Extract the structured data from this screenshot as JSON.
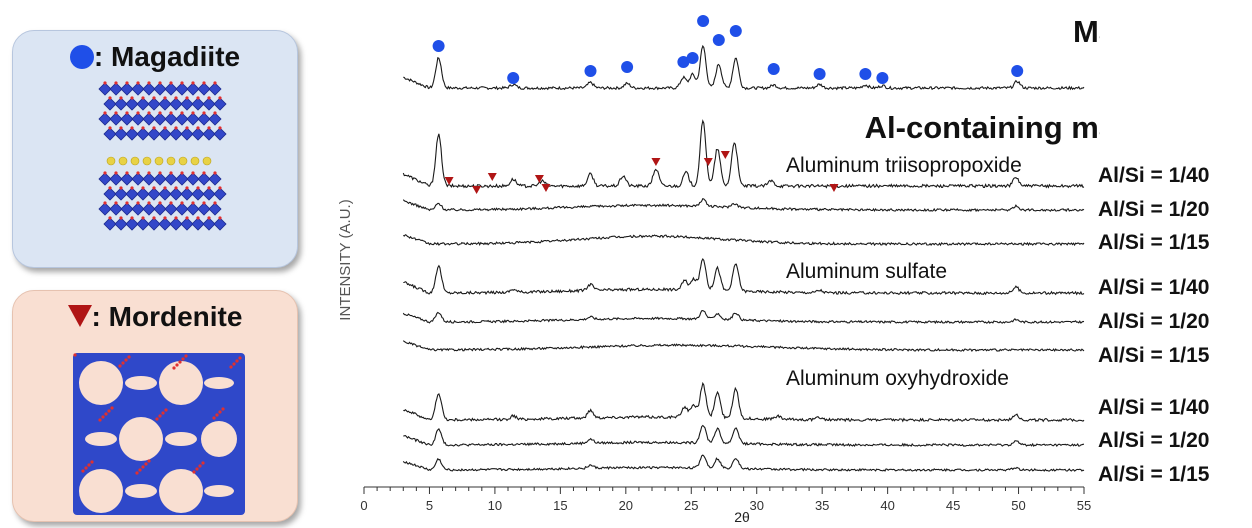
{
  "legend": {
    "magadiite_label": ": Magadiite",
    "magadiite_marker": "blue-circle-marker",
    "magadiite_color": "#1f4fe8",
    "mordenite_label": ": Mordenite",
    "mordenite_marker": "red-triangle-marker",
    "mordenite_color": "#b01515"
  },
  "chart_data": {
    "type": "line",
    "title": "",
    "xlabel": "2θ",
    "ylabel": "INTENSITY (A.U.)",
    "xlim": [
      0,
      55
    ],
    "xticks": [
      0,
      5,
      10,
      15,
      20,
      25,
      30,
      35,
      40,
      45,
      50,
      55
    ],
    "grid": false,
    "series": [
      {
        "name": "Magadiite",
        "peaks": [
          [
            5.7,
            1.0
          ],
          [
            11.4,
            0.12
          ],
          [
            17.3,
            0.18
          ],
          [
            20.1,
            0.15
          ],
          [
            24.4,
            0.35
          ],
          [
            25.1,
            0.45
          ],
          [
            25.9,
            1.4
          ],
          [
            27.1,
            0.8
          ],
          [
            28.4,
            1.0
          ],
          [
            31.3,
            0.1
          ],
          [
            34.8,
            0.12
          ],
          [
            38.3,
            0.1
          ],
          [
            39.6,
            0.08
          ],
          [
            49.9,
            0.22
          ]
        ]
      },
      {
        "name": "Aluminum triisopropoxide Al/Si = 1/40",
        "peaks": [
          [
            5.7,
            1.5
          ],
          [
            11.4,
            0.2
          ],
          [
            13.6,
            0.15
          ],
          [
            17.3,
            0.35
          ],
          [
            19.8,
            0.3
          ],
          [
            22.3,
            0.5
          ],
          [
            24.6,
            0.4
          ],
          [
            25.9,
            1.9
          ],
          [
            27.0,
            1.1
          ],
          [
            28.3,
            1.3
          ],
          [
            31.1,
            0.15
          ],
          [
            49.8,
            0.25
          ]
        ]
      },
      {
        "name": "Aluminum triisopropoxide Al/Si = 1/20",
        "peaks": [
          [
            5.7,
            0.25
          ],
          [
            25.9,
            0.25
          ],
          [
            28.3,
            0.15
          ],
          [
            49.8,
            0.15
          ]
        ],
        "hump": [
          22,
          0.18,
          6
        ]
      },
      {
        "name": "Aluminum triisopropoxide Al/Si = 1/15",
        "peaks": [],
        "hump": [
          22,
          0.3,
          5.5
        ]
      },
      {
        "name": "Aluminum sulfate Al/Si = 1/40",
        "peaks": [
          [
            5.7,
            0.9
          ],
          [
            11.4,
            0.1
          ],
          [
            17.3,
            0.2
          ],
          [
            24.5,
            0.3
          ],
          [
            25.2,
            0.35
          ],
          [
            25.9,
            1.05
          ],
          [
            27.0,
            0.75
          ],
          [
            28.4,
            0.9
          ],
          [
            34.8,
            0.08
          ],
          [
            49.8,
            0.2
          ]
        ],
        "hump": [
          22,
          0.12,
          6
        ]
      },
      {
        "name": "Aluminum sulfate Al/Si = 1/20",
        "peaks": [
          [
            5.7,
            0.4
          ],
          [
            17.3,
            0.1
          ],
          [
            25.9,
            0.35
          ],
          [
            27.0,
            0.25
          ],
          [
            28.4,
            0.3
          ],
          [
            49.8,
            0.1
          ]
        ],
        "hump": [
          22,
          0.15,
          6
        ]
      },
      {
        "name": "Aluminum sulfate Al/Si = 1/15",
        "peaks": [],
        "hump": [
          24,
          0.2,
          7
        ]
      },
      {
        "name": "Aluminum oxyhydroxide Al/Si = 1/40",
        "peaks": [
          [
            5.7,
            0.9
          ],
          [
            11.4,
            0.12
          ],
          [
            17.3,
            0.25
          ],
          [
            24.5,
            0.35
          ],
          [
            25.2,
            0.4
          ],
          [
            25.9,
            1.1
          ],
          [
            27.0,
            0.85
          ],
          [
            28.4,
            1.0
          ],
          [
            31.6,
            0.1
          ],
          [
            34.8,
            0.08
          ],
          [
            49.8,
            0.2
          ]
        ],
        "hump": [
          22,
          0.1,
          6
        ]
      },
      {
        "name": "Aluminum oxyhydroxide Al/Si = 1/20",
        "peaks": [
          [
            5.7,
            0.6
          ],
          [
            17.3,
            0.15
          ],
          [
            25.9,
            0.7
          ],
          [
            27.0,
            0.55
          ],
          [
            28.4,
            0.6
          ],
          [
            49.8,
            0.15
          ]
        ],
        "hump": [
          22,
          0.1,
          6
        ]
      },
      {
        "name": "Aluminum oxyhydroxide Al/Si = 1/15",
        "peaks": [
          [
            5.7,
            0.45
          ],
          [
            17.3,
            0.12
          ],
          [
            25.9,
            0.55
          ],
          [
            27.0,
            0.4
          ],
          [
            28.4,
            0.45
          ],
          [
            49.8,
            0.1
          ]
        ],
        "hump": [
          22,
          0.1,
          6
        ]
      }
    ],
    "magadiite_markers_2theta": [
      5.7,
      11.4,
      17.3,
      20.1,
      24.4,
      25.1,
      25.9,
      27.1,
      28.4,
      31.3,
      34.8,
      38.3,
      39.6,
      49.9
    ],
    "mordenite_markers_2theta": [
      6.5,
      8.6,
      9.8,
      13.4,
      13.9,
      22.3,
      26.3,
      27.6,
      35.9
    ],
    "annotations": {
      "magadiite_heading": "Magadiite",
      "al_heading": "Al-containing magadiite",
      "source_triisopropoxide": "Aluminum triisopropoxide",
      "source_sulfate": "Aluminum sulfate",
      "source_oxyhydroxide": "Aluminum oxyhydroxide"
    },
    "ratio_labels": [
      "Al/Si = 1/40",
      "Al/Si = 1/20",
      "Al/Si = 1/15",
      "Al/Si = 1/40",
      "Al/Si = 1/20",
      "Al/Si = 1/15",
      "Al/Si = 1/40",
      "Al/Si = 1/20",
      "Al/Si = 1/15"
    ]
  }
}
